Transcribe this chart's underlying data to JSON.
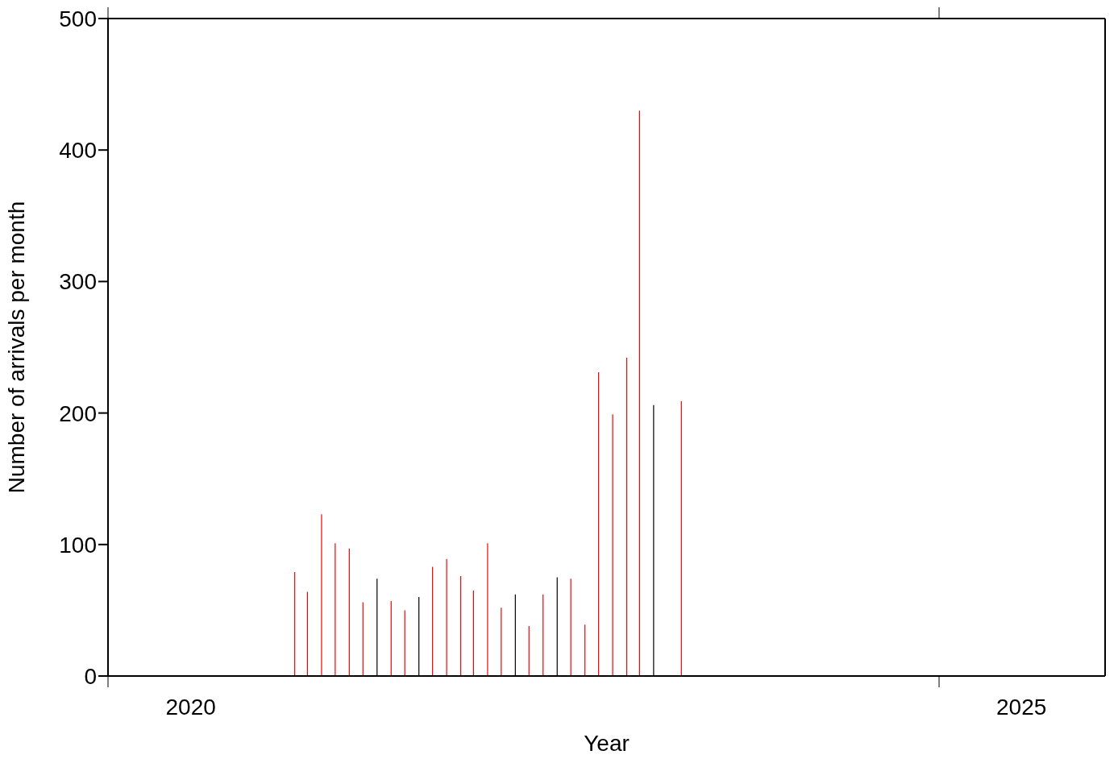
{
  "chart_data": {
    "type": "bar",
    "xlabel": "Year",
    "ylabel": "Number of arrivals per month",
    "x": [
      "2021-02-15",
      "2021-03-15",
      "2021-04-15",
      "2021-05-15",
      "2021-06-15",
      "2021-07-15",
      "2021-08-15",
      "2021-09-15",
      "2021-10-15",
      "2021-11-15",
      "2021-12-15",
      "2022-01-15",
      "2022-02-15",
      "2022-03-15",
      "2022-04-15",
      "2022-05-15",
      "2022-06-15",
      "2022-07-15",
      "2022-08-15",
      "2022-09-15",
      "2022-10-15",
      "2022-11-15",
      "2022-12-15",
      "2023-01-15",
      "2023-02-15",
      "2023-03-15",
      "2023-04-15",
      "2023-06-15"
    ],
    "values": [
      79,
      64,
      123,
      101,
      97,
      56,
      74,
      57,
      50,
      60,
      83,
      89,
      76,
      65,
      101,
      52,
      62,
      38,
      62,
      75,
      74,
      39,
      231,
      199,
      242,
      430,
      206,
      209
    ],
    "colors": [
      "#ff0000",
      "#ff0000",
      "#ff0000",
      "#ff0000",
      "#ff0000",
      "#ff0000",
      "#000000",
      "#ff0000",
      "#ff0000",
      "#000000",
      "#ff0000",
      "#ff0000",
      "#ff0000",
      "#ff0000",
      "#ff0000",
      "#ff0000",
      "#000000",
      "#ff0000",
      "#ff0000",
      "#000000",
      "#ff0000",
      "#ff0000",
      "#ff0000",
      "#ff0000",
      "#ff0000",
      "#ff0000",
      "#000000",
      "#ff0000"
    ],
    "xlim": [
      "2020",
      "2026"
    ],
    "xticks": [
      {
        "value": "2020",
        "label": null
      },
      {
        "value": "2020-07",
        "label": "2020"
      },
      {
        "value": "2025",
        "label": null
      },
      {
        "value": "2025-07",
        "label": "2025"
      }
    ],
    "ylim": [
      0,
      500
    ],
    "yticks": [
      0,
      100,
      200,
      300,
      400,
      500
    ],
    "grid": false,
    "legend": false
  }
}
